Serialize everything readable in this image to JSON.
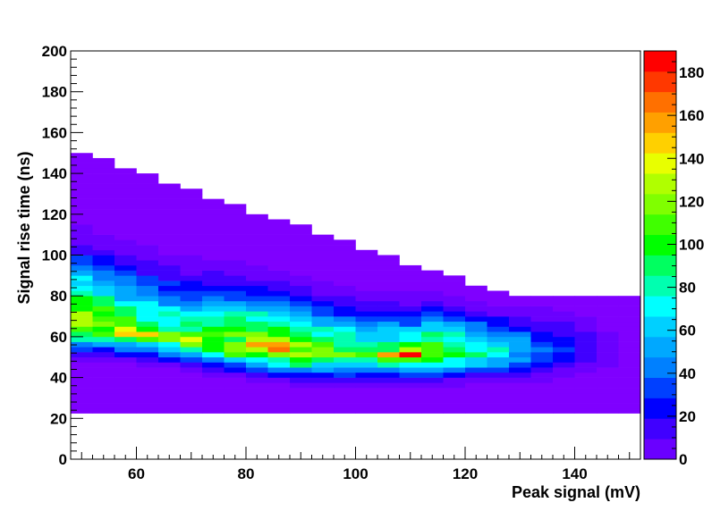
{
  "chart_data": {
    "type": "heatmap",
    "title": "",
    "xlabel": "Peak signal (mV)",
    "ylabel": "Signal rise time (ns)",
    "xlim": [
      48,
      152
    ],
    "ylim": [
      0,
      200
    ],
    "x_ticks": [
      60,
      80,
      100,
      120,
      140
    ],
    "y_ticks": [
      0,
      20,
      40,
      60,
      80,
      100,
      120,
      140,
      160,
      180,
      200
    ],
    "z_range": [
      0,
      190
    ],
    "z_ticks": [
      0,
      20,
      40,
      60,
      80,
      100,
      120,
      140,
      160,
      180
    ],
    "palette": [
      "#7f00ff",
      "#6a00ff",
      "#4000ff",
      "#0000ff",
      "#0040ff",
      "#0080ff",
      "#00a8ff",
      "#00d0ff",
      "#00ffff",
      "#00ffb0",
      "#00ff60",
      "#00ff00",
      "#40ff00",
      "#80ff00",
      "#b0ff00",
      "#e8ff00",
      "#ffd000",
      "#ffa000",
      "#ff7000",
      "#ff3800",
      "#ff0000"
    ],
    "bin_width_x": 4,
    "bin_width_y": 2.5,
    "ridge": [
      [
        50,
        65
      ],
      [
        60,
        62
      ],
      [
        70,
        58
      ],
      [
        80,
        55
      ],
      [
        90,
        52
      ],
      [
        100,
        51
      ],
      [
        110,
        51
      ],
      [
        115,
        52
      ]
    ],
    "hotspots": [
      [
        58,
        62,
        150
      ],
      [
        62,
        60,
        160
      ],
      [
        67,
        61,
        150
      ],
      [
        70,
        58,
        150
      ],
      [
        80,
        55,
        140
      ],
      [
        85,
        55,
        150
      ],
      [
        96,
        52,
        140
      ],
      [
        105,
        52,
        160
      ],
      [
        110,
        51,
        190
      ]
    ],
    "peak_bin": {
      "x": 110,
      "y": 51,
      "value": 190
    }
  }
}
